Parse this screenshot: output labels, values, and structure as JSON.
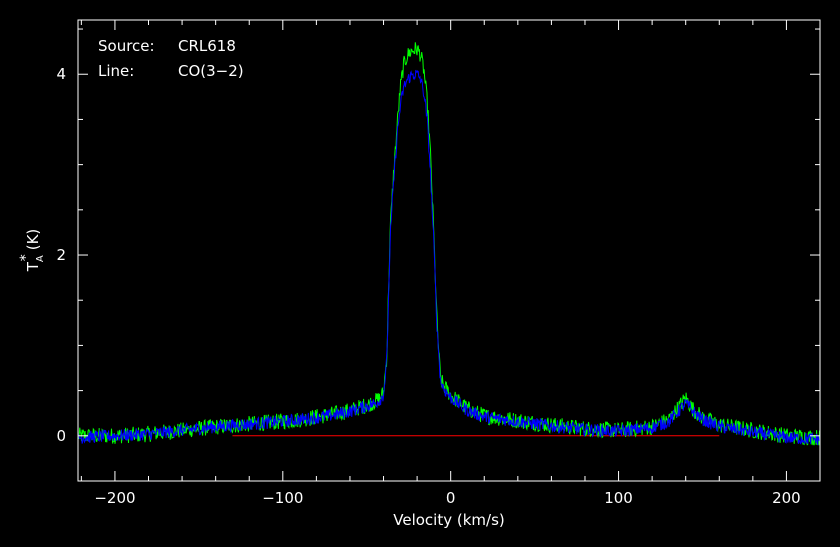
{
  "chart_data": {
    "type": "line",
    "annotations": {
      "source_label": "Source:",
      "source_value": "CRL618",
      "line_label": "Line:",
      "line_value": "CO(3−2)"
    },
    "xlabel": "Velocity (km/s)",
    "ylabel_main": "T",
    "ylabel_sub": "A",
    "ylabel_sup": "*",
    "ylabel_unit": "(K)",
    "xlim": [
      -222,
      220
    ],
    "ylim": [
      -0.5,
      4.6
    ],
    "x_ticks": [
      {
        "value": -200,
        "label": "−200"
      },
      {
        "value": -100,
        "label": "−100"
      },
      {
        "value": 0,
        "label": "0"
      },
      {
        "value": 100,
        "label": "100"
      },
      {
        "value": 200,
        "label": "200"
      }
    ],
    "y_ticks": [
      {
        "value": 0,
        "label": "0"
      },
      {
        "value": 2,
        "label": "2"
      },
      {
        "value": 4,
        "label": "4"
      }
    ],
    "baseline": {
      "y": 0,
      "x": [
        -130,
        160
      ],
      "color": "#ff0000"
    },
    "colors": {
      "axes": "#ffffff",
      "background": "#000000"
    },
    "series": [
      {
        "color": "#00ff00",
        "x": [
          -222,
          -200,
          -180,
          -160,
          -140,
          -120,
          -100,
          -90,
          -80,
          -70,
          -60,
          -55,
          -50,
          -45,
          -42,
          -40,
          -38,
          -36,
          -34,
          -32,
          -30,
          -28,
          -26,
          -24,
          -22,
          -20,
          -18,
          -16,
          -14,
          -12,
          -10,
          -8,
          -6,
          -4,
          -2,
          0,
          10,
          20,
          40,
          60,
          80,
          100,
          120,
          130,
          136,
          140,
          144,
          150,
          160,
          180,
          200,
          220
        ],
        "y": [
          0.0,
          0.0,
          0.02,
          0.06,
          0.1,
          0.13,
          0.16,
          0.18,
          0.21,
          0.24,
          0.28,
          0.31,
          0.34,
          0.38,
          0.42,
          0.48,
          0.9,
          2.3,
          2.9,
          3.4,
          3.85,
          4.1,
          4.2,
          4.25,
          4.27,
          4.28,
          4.22,
          4.05,
          3.7,
          3.1,
          2.2,
          1.2,
          0.62,
          0.55,
          0.5,
          0.45,
          0.3,
          0.22,
          0.17,
          0.12,
          0.08,
          0.06,
          0.1,
          0.18,
          0.32,
          0.42,
          0.3,
          0.2,
          0.12,
          0.06,
          0.0,
          -0.02
        ]
      },
      {
        "color": "#0000ff",
        "x": [
          -222,
          -200,
          -180,
          -160,
          -140,
          -120,
          -100,
          -90,
          -80,
          -70,
          -60,
          -55,
          -50,
          -45,
          -42,
          -40,
          -38,
          -36,
          -34,
          -32,
          -30,
          -28,
          -26,
          -24,
          -22,
          -20,
          -18,
          -16,
          -14,
          -12,
          -10,
          -8,
          -6,
          -4,
          -2,
          0,
          10,
          20,
          40,
          60,
          80,
          100,
          120,
          130,
          136,
          140,
          144,
          150,
          160,
          180,
          200,
          220
        ],
        "y": [
          -0.02,
          0.0,
          0.02,
          0.06,
          0.1,
          0.13,
          0.16,
          0.18,
          0.2,
          0.23,
          0.27,
          0.3,
          0.33,
          0.36,
          0.4,
          0.46,
          0.85,
          2.2,
          2.8,
          3.3,
          3.65,
          3.85,
          3.93,
          3.98,
          4.0,
          4.0,
          3.95,
          3.8,
          3.5,
          2.9,
          2.1,
          1.15,
          0.6,
          0.52,
          0.47,
          0.42,
          0.28,
          0.21,
          0.16,
          0.11,
          0.07,
          0.05,
          0.09,
          0.16,
          0.28,
          0.36,
          0.28,
          0.18,
          0.1,
          0.04,
          -0.02,
          -0.04
        ]
      }
    ]
  }
}
